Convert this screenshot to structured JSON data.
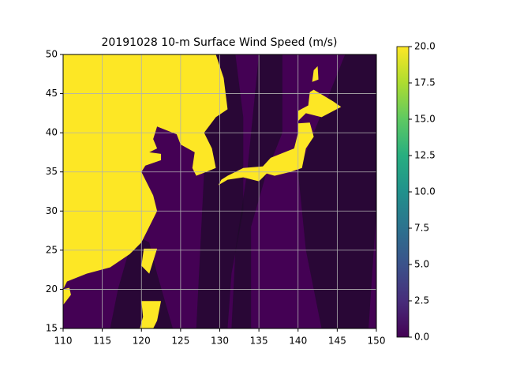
{
  "chart_data": {
    "type": "map",
    "title": "20191028 10-m Surface Wind Speed (m/s)",
    "xlim": [
      110,
      150
    ],
    "ylim": [
      15,
      50
    ],
    "xticks": [
      110,
      115,
      120,
      125,
      130,
      135,
      140,
      145,
      150
    ],
    "yticks": [
      15,
      20,
      25,
      30,
      35,
      40,
      45,
      50
    ],
    "grid": true,
    "clim": [
      0,
      20
    ],
    "cticks": [
      {
        "value": 0,
        "label": "0.0"
      },
      {
        "value": 2.5,
        "label": "2.5"
      },
      {
        "value": 5,
        "label": "5.0"
      },
      {
        "value": 7.5,
        "label": "7.5"
      },
      {
        "value": 10,
        "label": "10.0"
      },
      {
        "value": 12.5,
        "label": "12.5"
      },
      {
        "value": 15,
        "label": "15.0"
      },
      {
        "value": 17.5,
        "label": "17.5"
      },
      {
        "value": 20,
        "label": "20.0"
      }
    ]
  }
}
